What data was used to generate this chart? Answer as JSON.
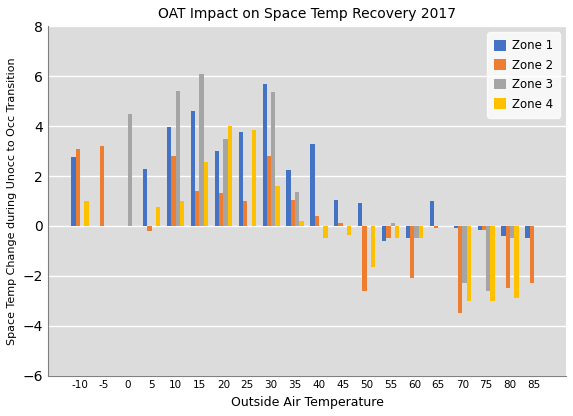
{
  "title": "OAT Impact on Space Temp Recovery 2017",
  "xlabel": "Outside Air Temperature",
  "ylabel": "Space Temp Change during Unocc to Occ Transition",
  "oat_values": [
    -10,
    -5,
    0,
    5,
    10,
    15,
    20,
    25,
    30,
    35,
    40,
    45,
    50,
    55,
    60,
    65,
    70,
    75,
    80,
    85
  ],
  "zone1": [
    2.75,
    0,
    0,
    2.3,
    3.95,
    4.6,
    3.0,
    3.75,
    5.7,
    2.25,
    3.3,
    1.05,
    0.9,
    -0.6,
    -0.5,
    1.0,
    -0.1,
    -0.15,
    -0.4,
    -0.5
  ],
  "zone2": [
    3.1,
    3.2,
    0,
    -0.2,
    2.8,
    1.4,
    1.3,
    1.0,
    2.8,
    1.05,
    0.4,
    0.1,
    -2.6,
    -0.5,
    -2.1,
    -0.1,
    -3.5,
    -0.15,
    -2.5,
    -2.3
  ],
  "zone3": [
    0,
    0,
    4.5,
    0,
    5.4,
    6.1,
    3.5,
    0,
    5.35,
    1.35,
    0,
    0,
    0,
    0.1,
    -0.5,
    0,
    -2.3,
    -2.6,
    -0.5,
    0
  ],
  "zone4": [
    1.0,
    0,
    0,
    0.75,
    1.0,
    2.55,
    4.0,
    3.85,
    1.6,
    0.2,
    -0.5,
    -0.35,
    -1.65,
    -0.5,
    -0.5,
    0,
    -3.0,
    -3.0,
    -2.9,
    0
  ],
  "colors": {
    "zone1": "#4472C4",
    "zone2": "#ED7D31",
    "zone3": "#A5A5A5",
    "zone4": "#FFC000"
  },
  "plot_bg": "#DCDCDC",
  "fig_bg": "#FFFFFF",
  "ylim": [
    -6,
    8
  ],
  "yticks": [
    -6,
    -4,
    -2,
    0,
    2,
    4,
    6,
    8
  ],
  "figsize": [
    5.73,
    4.16
  ],
  "dpi": 100,
  "bar_width": 0.18
}
